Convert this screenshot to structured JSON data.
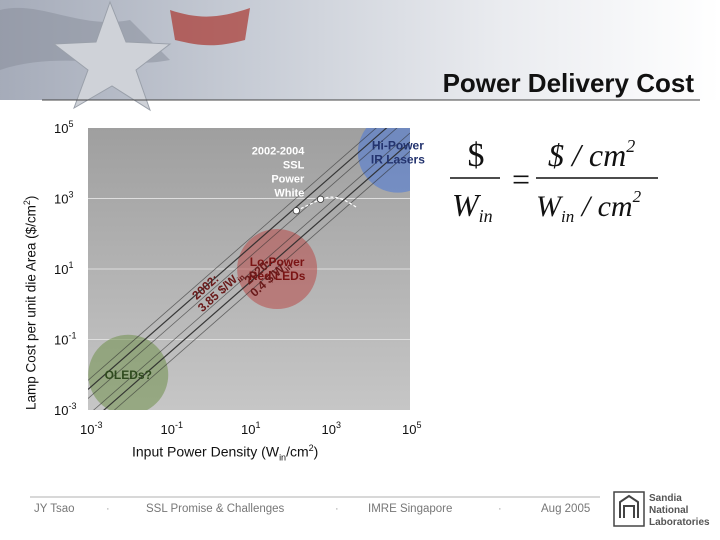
{
  "slide": {
    "title": "Power Delivery Cost",
    "footer": {
      "author": "JY Tsao",
      "talk": "SSL Promise & Challenges",
      "venue": "IMRE Singapore",
      "date": "Aug 2005",
      "separator": "·"
    },
    "logo_text": [
      "Sandia",
      "National",
      "Laboratories"
    ],
    "equation": {
      "lhs_num": "$",
      "lhs_den": "W",
      "lhs_den_sub": "in",
      "rhs_num": "$ / cm",
      "rhs_num_sup": "2",
      "rhs_den": "W",
      "rhs_den_sub": "in",
      "rhs_den_tail": " / cm",
      "rhs_den_sup": "2",
      "equals": "="
    }
  },
  "chart_data": {
    "type": "scatter",
    "scale": "log-log",
    "xlim": [
      0.001,
      100000
    ],
    "ylim": [
      0.001,
      100000
    ],
    "xlabel": {
      "main": "Input Power Density (W",
      "sub": "in",
      "tail": "/cm",
      "sup": "2",
      "close": ")"
    },
    "ylabel": {
      "main": "Lamp Cost per unit die Area ($/cm",
      "sup": "2",
      "close": ")"
    },
    "x_ticks": [
      {
        "value": 0.001,
        "base": "10",
        "exp": "-3"
      },
      {
        "value": 0.1,
        "base": "10",
        "exp": "-1"
      },
      {
        "value": 10,
        "base": "10",
        "exp": "1"
      },
      {
        "value": 1000,
        "base": "10",
        "exp": "3"
      },
      {
        "value": 100000,
        "base": "10",
        "exp": "5"
      }
    ],
    "y_ticks": [
      {
        "value": 100000,
        "base": "10",
        "exp": "5"
      },
      {
        "value": 1000,
        "base": "10",
        "exp": "3"
      },
      {
        "value": 10,
        "base": "10",
        "exp": "1"
      },
      {
        "value": 0.1,
        "base": "10",
        "exp": "-1"
      },
      {
        "value": 0.001,
        "base": "10",
        "exp": "-3"
      }
    ],
    "grid": true,
    "regions": [
      {
        "label": "OLEDs?",
        "x": 0.01,
        "y": 0.01,
        "color": "#6f8f4a"
      },
      {
        "label": "Lo-Power\nRed LEDs",
        "x": 50,
        "y": 10,
        "color": "#b84a48"
      },
      {
        "label": "Hi-Power\nIR Lasers",
        "x": 50000,
        "y": 20000,
        "color": "#4a78d8"
      }
    ],
    "lines": [
      {
        "label": "2002:\n3.85 $/W",
        "label_sub": "in",
        "cost_per_watt": 3.85
      },
      {
        "label": "2020:\n0.4 $/W",
        "label_sub": "in",
        "cost_per_watt": 0.4
      }
    ],
    "annotation": {
      "label": "2002-2004\nSSL\nPower\nWhite"
    },
    "points": [
      {
        "name": "ssl-power-white-2002",
        "x": 150,
        "y": 450
      },
      {
        "name": "ssl-power-white-2004",
        "x": 600,
        "y": 950
      }
    ]
  }
}
